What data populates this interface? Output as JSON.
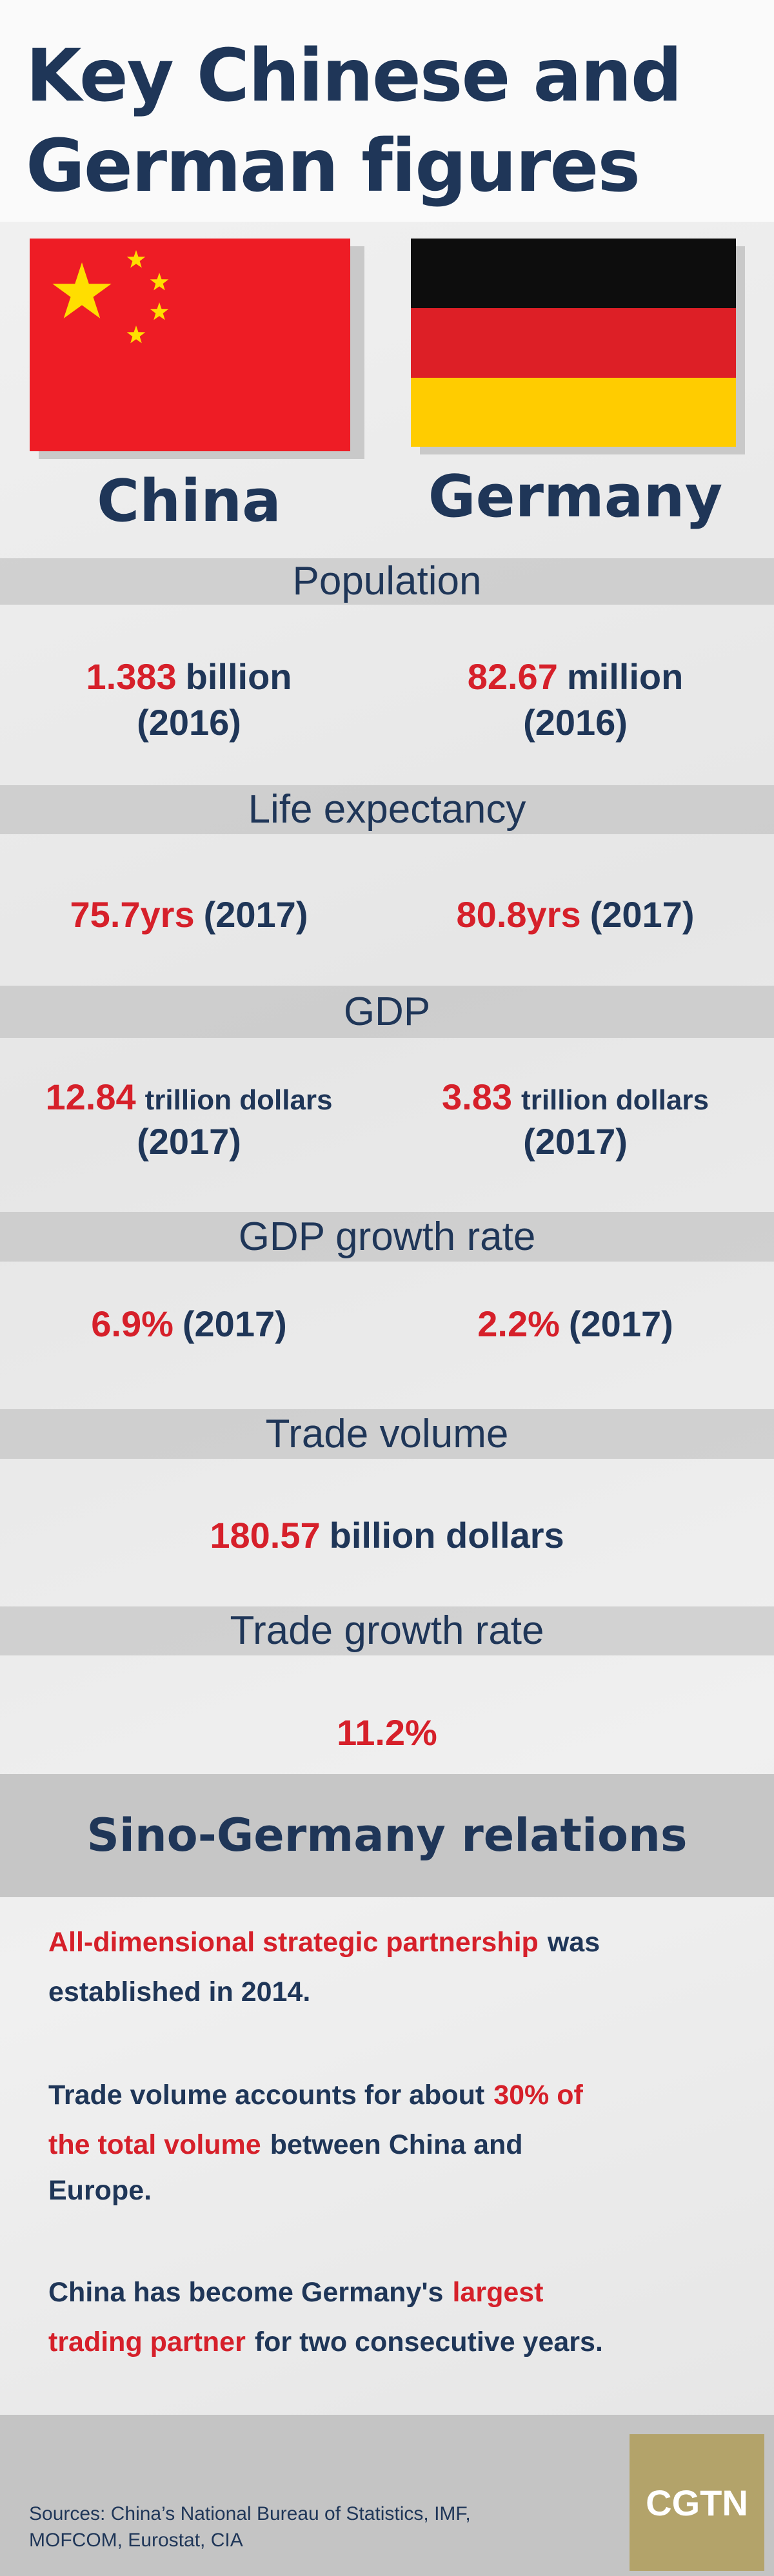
{
  "title": [
    "Key Chinese and",
    "German figures"
  ],
  "countries": [
    "China",
    "Germany"
  ],
  "sections": [
    {
      "label": "Population",
      "china": {
        "value": "1.383",
        "unit": "billion",
        "year": "(2016)"
      },
      "germany": {
        "value": "82.67",
        "unit": "million",
        "year": "(2016)"
      }
    },
    {
      "label": "Life expectancy",
      "china": {
        "value": "75.7yrs",
        "year": "(2017)"
      },
      "germany": {
        "value": "80.8yrs",
        "year": "(2017)"
      }
    },
    {
      "label": "GDP",
      "china": {
        "value": "12.84",
        "unit": "trillion dollars",
        "year": "(2017)"
      },
      "germany": {
        "value": "3.83",
        "unit": "trillion dollars",
        "year": "(2017)"
      }
    },
    {
      "label": "GDP growth rate",
      "china": {
        "value": "6.9%",
        "year": "(2017)"
      },
      "germany": {
        "value": "2.2%",
        "year": "(2017)"
      }
    },
    {
      "label": "Trade volume",
      "both": {
        "value": "180.57",
        "unit": "billion dollars"
      }
    },
    {
      "label": "Trade growth rate",
      "both": {
        "value": "11.2%"
      }
    }
  ],
  "relations": {
    "title": "Sino-Germany relations",
    "paragraphs": [
      [
        [
          {
            "text": "All-dimensional strategic partnership",
            "highlight": true
          },
          {
            "text": "was",
            "highlight": false
          }
        ],
        [
          {
            "text": "established in 2014.",
            "highlight": false
          }
        ]
      ],
      [
        [
          {
            "text": "Trade volume accounts for about",
            "highlight": false
          },
          {
            "text": "30% of",
            "highlight": true
          }
        ],
        [
          {
            "text": "the total volume",
            "highlight": true
          },
          {
            "text": "between China and",
            "highlight": false
          }
        ],
        [
          {
            "text": "Europe.",
            "highlight": false
          }
        ]
      ],
      [
        [
          {
            "text": "China has become Germany's",
            "highlight": false
          },
          {
            "text": "largest",
            "highlight": true
          }
        ],
        [
          {
            "text": "trading partner",
            "highlight": true
          },
          {
            "text": "for two consecutive years.",
            "highlight": false
          }
        ]
      ]
    ]
  },
  "sources": [
    "Sources: China’s National Bureau of Statistics, IMF,",
    "MOFCOM, Eurostat, CIA"
  ],
  "logo": "CGTN"
}
